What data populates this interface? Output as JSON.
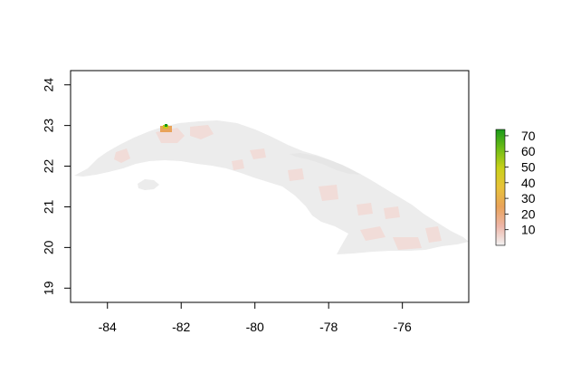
{
  "map": {
    "x_ticks": [
      -84,
      -82,
      -80,
      -78,
      -76
    ],
    "y_ticks": [
      19,
      20,
      21,
      22,
      23,
      24
    ],
    "xlim": [
      -85,
      -74.2
    ],
    "ylim": [
      18.65,
      24.35
    ],
    "land_color": "#ececec",
    "region_color": "#f1dcd8",
    "hotspot_colors": [
      "#e9a35a",
      "#c7c81a",
      "#1a9a1a"
    ]
  },
  "legend": {
    "labels": [
      "10",
      "20",
      "30",
      "40",
      "50",
      "60",
      "70"
    ],
    "values": [
      10,
      20,
      30,
      40,
      50,
      60,
      70
    ],
    "range": [
      0,
      74
    ],
    "gradient_colors": [
      "#f2f2f2",
      "#eeb6a8",
      "#e9a35a",
      "#e8c23a",
      "#c9d11a",
      "#6fbd16",
      "#1a9a1a"
    ]
  }
}
